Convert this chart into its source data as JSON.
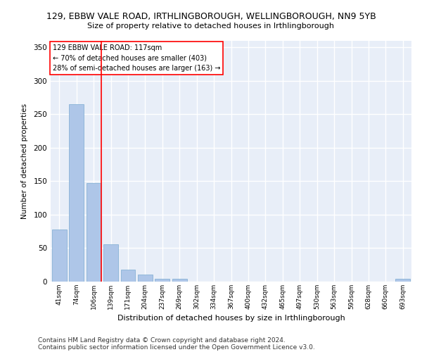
{
  "title_line1": "129, EBBW VALE ROAD, IRTHLINGBOROUGH, WELLINGBOROUGH, NN9 5YB",
  "title_line2": "Size of property relative to detached houses in Irthlingborough",
  "xlabel": "Distribution of detached houses by size in Irthlingborough",
  "ylabel": "Number of detached properties",
  "categories": [
    "41sqm",
    "74sqm",
    "106sqm",
    "139sqm",
    "171sqm",
    "204sqm",
    "237sqm",
    "269sqm",
    "302sqm",
    "334sqm",
    "367sqm",
    "400sqm",
    "432sqm",
    "465sqm",
    "497sqm",
    "530sqm",
    "563sqm",
    "595sqm",
    "628sqm",
    "660sqm",
    "693sqm"
  ],
  "values": [
    78,
    265,
    147,
    56,
    18,
    10,
    4,
    4,
    0,
    0,
    0,
    0,
    0,
    0,
    0,
    0,
    0,
    0,
    0,
    0,
    4
  ],
  "bar_color": "#aec6e8",
  "bar_edge_color": "#7aaad0",
  "red_line_label": "129 EBBW VALE ROAD: 117sqm",
  "annotation_line2": "← 70% of detached houses are smaller (403)",
  "annotation_line3": "28% of semi-detached houses are larger (163) →",
  "ylim": [
    0,
    360
  ],
  "yticks": [
    0,
    50,
    100,
    150,
    200,
    250,
    300,
    350
  ],
  "background_color": "#e8eef8",
  "grid_color": "#ffffff",
  "footer_line1": "Contains HM Land Registry data © Crown copyright and database right 2024.",
  "footer_line2": "Contains public sector information licensed under the Open Government Licence v3.0."
}
